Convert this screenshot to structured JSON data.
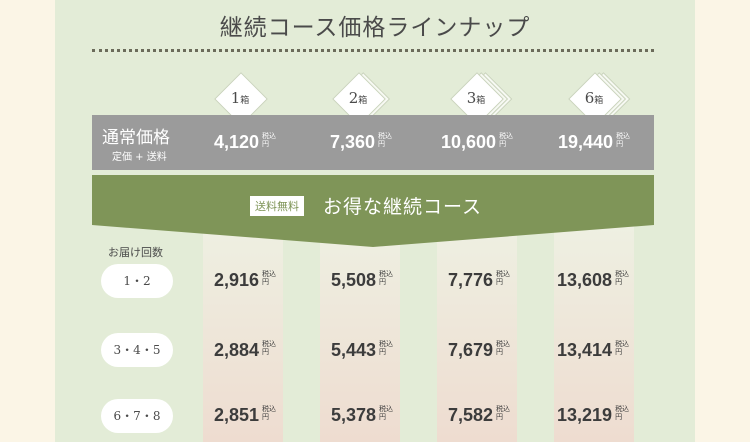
{
  "title": "継続コース価格ラインナップ",
  "boxes": [
    {
      "num": "1",
      "unit": "箱"
    },
    {
      "num": "2",
      "unit": "箱"
    },
    {
      "num": "3",
      "unit": "箱"
    },
    {
      "num": "6",
      "unit": "箱"
    }
  ],
  "tax_label_top": "税込",
  "tax_label_bottom": "円",
  "normal": {
    "label": "通常価格",
    "sub": "定価 + 送料",
    "prices": [
      "4,120",
      "7,360",
      "10,600",
      "19,440"
    ]
  },
  "course": {
    "tag": "送料無料",
    "label": "お得な継続コース"
  },
  "delivery_label": "お届け回数",
  "rows": [
    {
      "label": "1・2",
      "prices": [
        "2,916",
        "5,508",
        "7,776",
        "13,608"
      ]
    },
    {
      "label": "3・4・5",
      "prices": [
        "2,884",
        "5,443",
        "7,679",
        "13,414"
      ]
    },
    {
      "label": "6・7・8",
      "prices": [
        "2,851",
        "5,378",
        "7,582",
        "13,219"
      ]
    }
  ]
}
